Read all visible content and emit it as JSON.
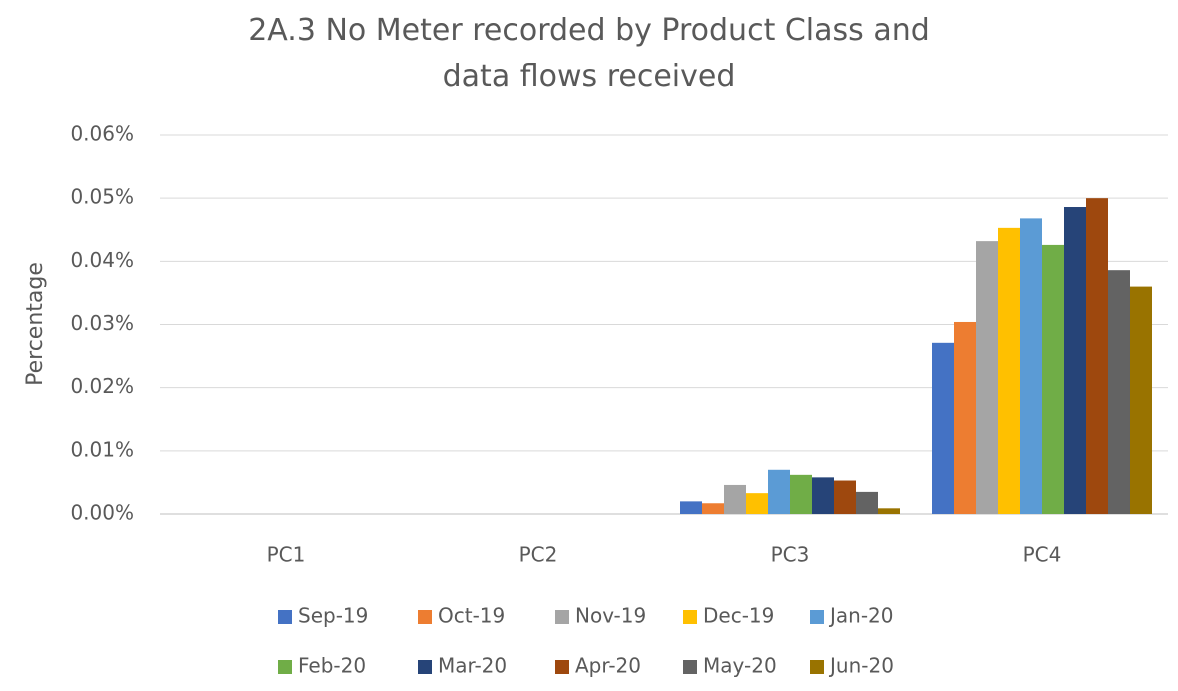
{
  "chart_data": {
    "type": "bar",
    "title": "2A.3 No Meter recorded by Product Class and data flows received",
    "y_label": "Percentage",
    "categories": [
      "PC1",
      "PC2",
      "PC3",
      "PC4"
    ],
    "series": [
      {
        "name": "Sep-19",
        "color": "#4472c4",
        "values": [
          0,
          0,
          0.002,
          0.0271
        ]
      },
      {
        "name": "Oct-19",
        "color": "#ed7d31",
        "values": [
          0,
          0,
          0.0017,
          0.0304
        ]
      },
      {
        "name": "Nov-19",
        "color": "#a5a5a5",
        "values": [
          0,
          0,
          0.0046,
          0.0432
        ]
      },
      {
        "name": "Dec-19",
        "color": "#ffc000",
        "values": [
          0,
          0,
          0.0033,
          0.0453
        ]
      },
      {
        "name": "Jan-20",
        "color": "#5b9bd5",
        "values": [
          0,
          0,
          0.007,
          0.0468
        ]
      },
      {
        "name": "Feb-20",
        "color": "#70ad47",
        "values": [
          0,
          0,
          0.0062,
          0.0426
        ]
      },
      {
        "name": "Mar-20",
        "color": "#264478",
        "values": [
          0,
          0,
          0.0058,
          0.0486
        ]
      },
      {
        "name": "Apr-20",
        "color": "#9e480e",
        "values": [
          0,
          0,
          0.0053,
          0.05
        ]
      },
      {
        "name": "May-20",
        "color": "#636363",
        "values": [
          0,
          0,
          0.0035,
          0.0386
        ]
      },
      {
        "name": "Jun-20",
        "color": "#997300",
        "values": [
          0,
          0,
          0.0009,
          0.036
        ]
      }
    ],
    "ylim": [
      0,
      0.06
    ],
    "yticks": [
      {
        "value": 0,
        "label": "0.00%"
      },
      {
        "value": 0.01,
        "label": "0.01%"
      },
      {
        "value": 0.02,
        "label": "0.02%"
      },
      {
        "value": 0.03,
        "label": "0.03%"
      },
      {
        "value": 0.04,
        "label": "0.04%"
      },
      {
        "value": 0.05,
        "label": "0.05%"
      },
      {
        "value": 0.06,
        "label": "0.06%"
      }
    ],
    "grid": true,
    "legend": "bottom"
  }
}
